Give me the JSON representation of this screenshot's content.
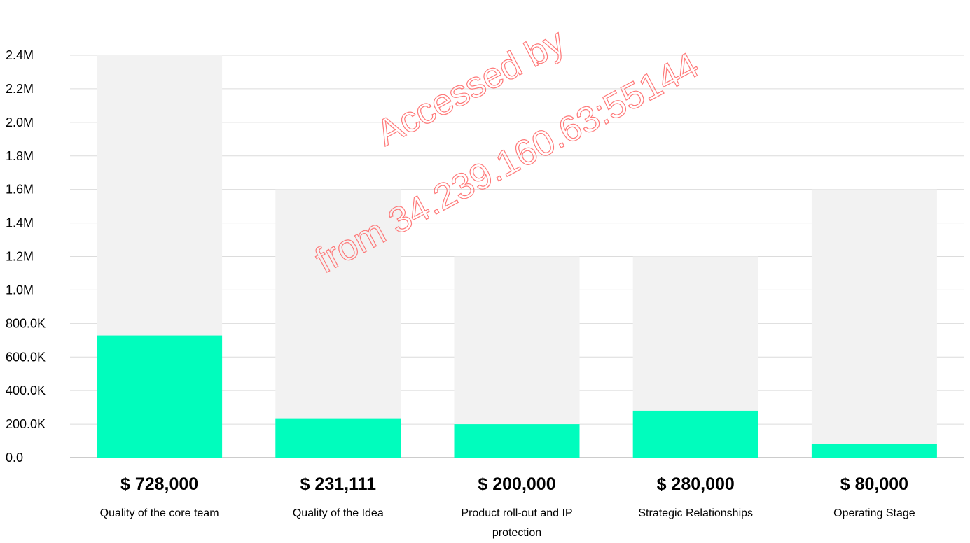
{
  "chart_data": {
    "type": "bar",
    "categories": [
      "Quality of the core team",
      "Quality of the Idea",
      "Product roll-out and IP protection",
      "Strategic Relationships",
      "Operating Stage"
    ],
    "value_labels": [
      "$ 728,000",
      "$ 231,111",
      "$ 200,000",
      "$ 280,000",
      "$ 80,000"
    ],
    "series": [
      {
        "values": [
          2400000,
          1600000,
          1200000,
          1200000,
          1600000
        ]
      },
      {
        "values": [
          728000,
          231111,
          200000,
          280000,
          80000
        ]
      }
    ],
    "ylim": [
      0,
      2400000
    ],
    "yticks": [
      0,
      200000,
      400000,
      600000,
      800000,
      1000000,
      1200000,
      1400000,
      1600000,
      1800000,
      2000000,
      2200000,
      2400000
    ],
    "ytick_labels": [
      "0.0",
      "200.0K",
      "400.0K",
      "600.0K",
      "800.0K",
      "1.0M",
      "1.2M",
      "1.4M",
      "1.6M",
      "1.8M",
      "2.0M",
      "2.2M",
      "2.4M"
    ],
    "grid": true,
    "title": "",
    "xlabel": "",
    "ylabel": "",
    "colors": {
      "max_bar": "#f2f2f2",
      "value_bar": "#00fdbd"
    }
  },
  "watermark": {
    "line1": "Accessed by",
    "line2": "from 34.239.160.63:55144",
    "color": "#ff6b6b"
  }
}
